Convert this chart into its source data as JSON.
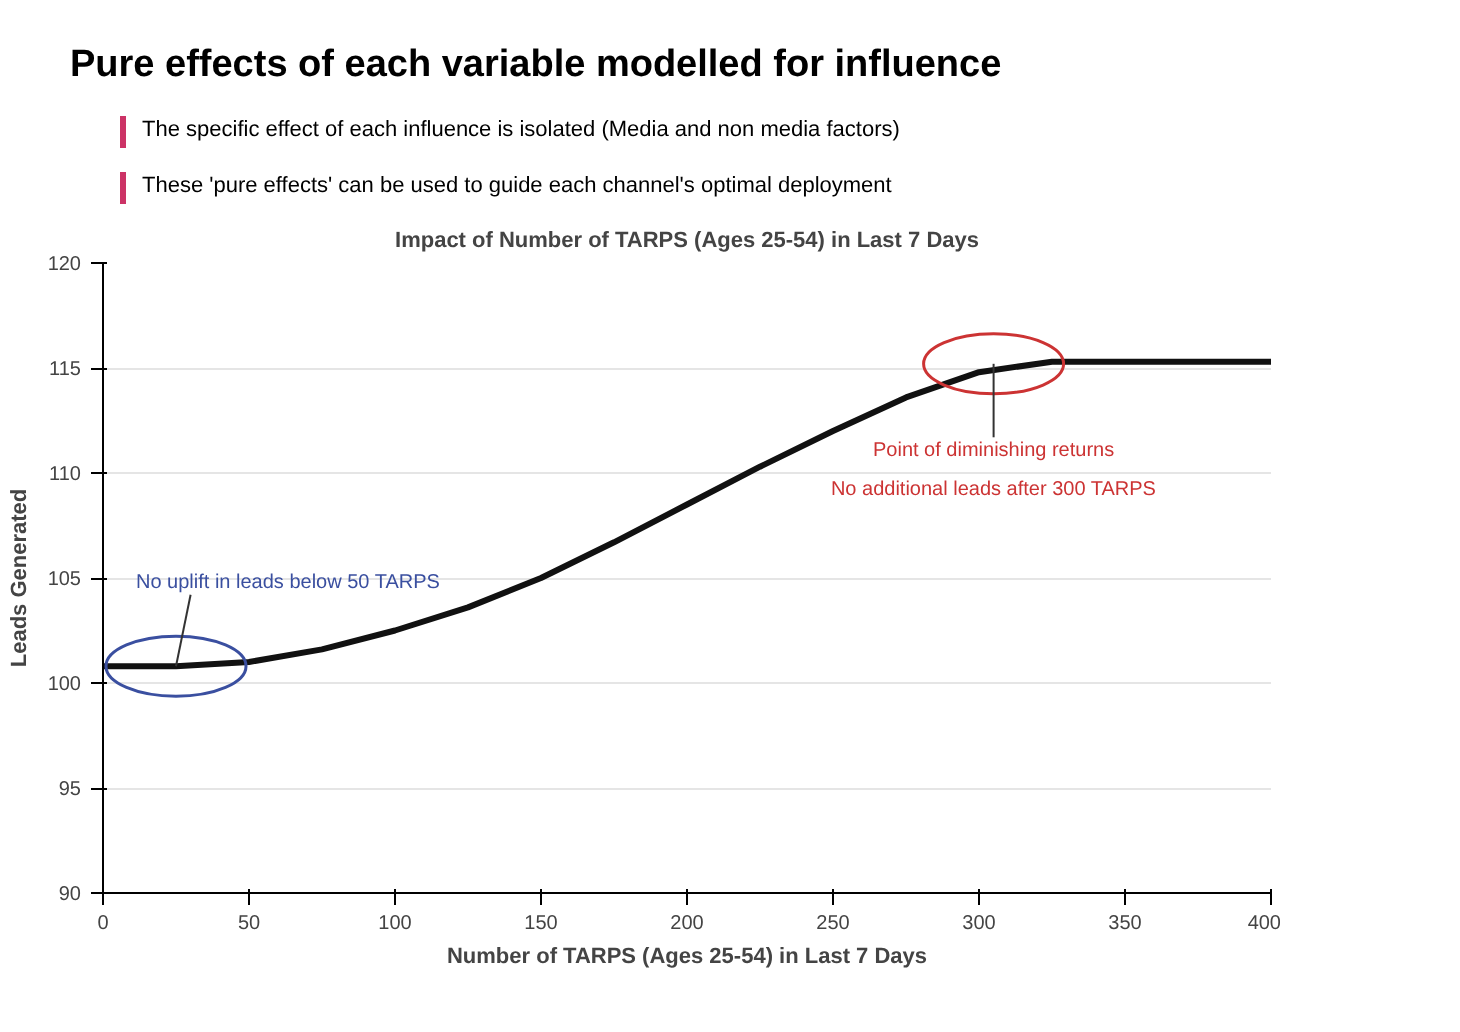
{
  "chart_data": {
    "type": "line",
    "title": "Impact of Number of TARPS (Ages 25-54) in Last 7 Days",
    "xlabel": "Number of TARPS (Ages 25-54) in Last 7 Days",
    "ylabel": "Leads Generated",
    "annotations": [
      "Pure effects of each variable modelled for influence",
      "The specific effect of each influence is isolated (Media and non media factors)",
      "These 'pure effects' can be used to guide each channel's optimal deployment",
      {
        "text": "No uplift in leads below 50 TARPS",
        "x": 25,
        "y": 100.8
      },
      {
        "text": "Point of diminishing returns\nNo additional leads after 300 TARPS",
        "x": 305,
        "y": 115.2
      }
    ],
    "x": [
      0,
      25,
      50,
      75,
      100,
      125,
      150,
      175,
      200,
      225,
      250,
      275,
      300,
      325,
      350,
      400
    ],
    "series": [
      {
        "color": "#111111",
        "values": [
          100.8,
          100.8,
          101.0,
          101.6,
          102.5,
          103.6,
          105.0,
          106.7,
          108.5,
          110.3,
          112.0,
          113.6,
          114.8,
          115.3,
          115.3,
          115.3
        ]
      }
    ],
    "xlim": [
      0,
      400
    ],
    "xticks": [
      0,
      50,
      100,
      150,
      200,
      250,
      300,
      350,
      400
    ],
    "ylim": [
      90,
      120
    ],
    "yticks": [
      90,
      95,
      100,
      105,
      110,
      115,
      120
    ],
    "grid": "y",
    "marker": "none",
    "line_style": "solid"
  }
}
